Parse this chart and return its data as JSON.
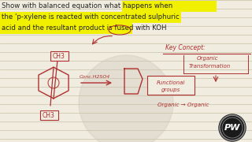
{
  "bg_color": "#f0ece0",
  "line_color": "#c8c0a8",
  "text_color_title": "#222222",
  "dc": "#b03030",
  "highlight_color": "#f0f000",
  "title_lines": [
    "Show with balanced equation what happens when",
    "the 'p-xylene is reacted with concentrated sulphuric",
    "acid and the resultant product is fused with KOH"
  ],
  "reagent_label": "Conc.H2SO4",
  "ch3_top": "CH3",
  "ch3_bottom": "CH3",
  "key_concept": "Key Concept:",
  "organic": "Organic",
  "transformation": "Transformation",
  "functional": "Functional",
  "groups": "groups",
  "org_org": "Organic → Organic",
  "logo_text": "PW",
  "logo_bg": "#1a1a1a",
  "logo_ring": "#888888",
  "wm_color": "#c8c0b0"
}
